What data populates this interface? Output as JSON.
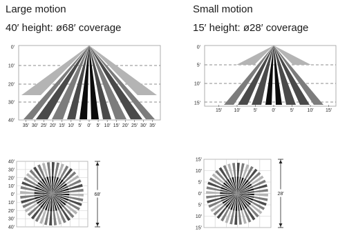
{
  "large": {
    "title": "Large motion",
    "subtitle": "40′ height: ø68′ coverage",
    "side_y_labels": [
      "0′",
      "10′",
      "20′",
      "30′",
      "40′"
    ],
    "side_x_labels": [
      "35′",
      "30′",
      "25′",
      "20′",
      "15′",
      "10′",
      "5′",
      "0′",
      "5′",
      "10′",
      "15′",
      "20′",
      "25′",
      "30′",
      "35′"
    ],
    "top_y_labels": [
      "40′",
      "30′",
      "20′",
      "10′",
      "0′",
      "10′",
      "20′",
      "30′",
      "40′"
    ],
    "diameter_label": "68′"
  },
  "small": {
    "title": "Small motion",
    "subtitle": "15′ height: ø28′ coverage",
    "side_y_labels": [
      "0′",
      "5′",
      "10′",
      "15′"
    ],
    "side_x_labels": [
      "15′",
      "10′",
      "5′",
      "0′",
      "5′",
      "10′",
      "15′"
    ],
    "top_y_labels": [
      "15′",
      "10′",
      "5′",
      "0′",
      "5′",
      "10′",
      "15′"
    ],
    "diameter_label": "28′"
  },
  "colors": {
    "black": "#0c0c0c",
    "dark": "#4a4a4a",
    "mid": "#7c7c7c",
    "light": "#b4b4b4"
  }
}
